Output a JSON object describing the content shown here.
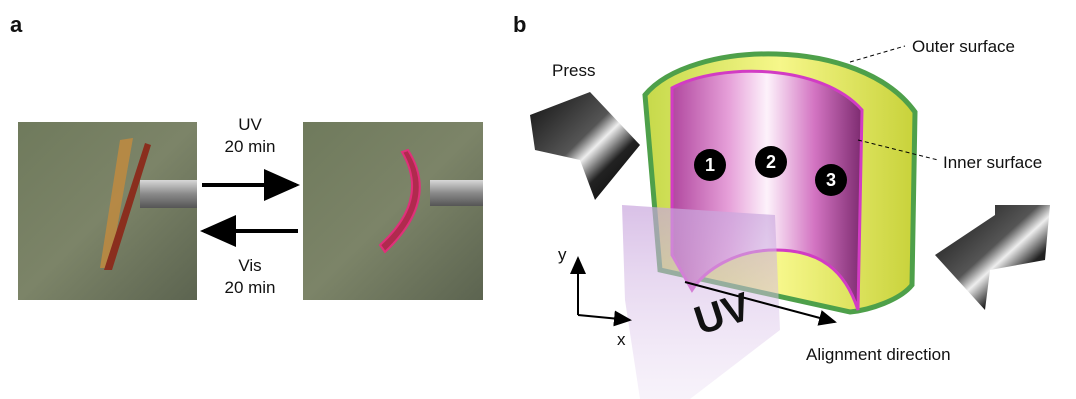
{
  "panel_a": {
    "label": "a",
    "forward": {
      "stimulus": "UV",
      "duration": "20 min"
    },
    "backward": {
      "stimulus": "Vis",
      "duration": "20 min"
    }
  },
  "panel_b": {
    "label": "b",
    "press": "Press",
    "outer_surface": "Outer surface",
    "inner_surface": "Inner surface",
    "positions": [
      "1",
      "2",
      "3"
    ],
    "axes": {
      "y": "y",
      "x": "x"
    },
    "light": "UV",
    "alignment": "Alignment direction"
  }
}
